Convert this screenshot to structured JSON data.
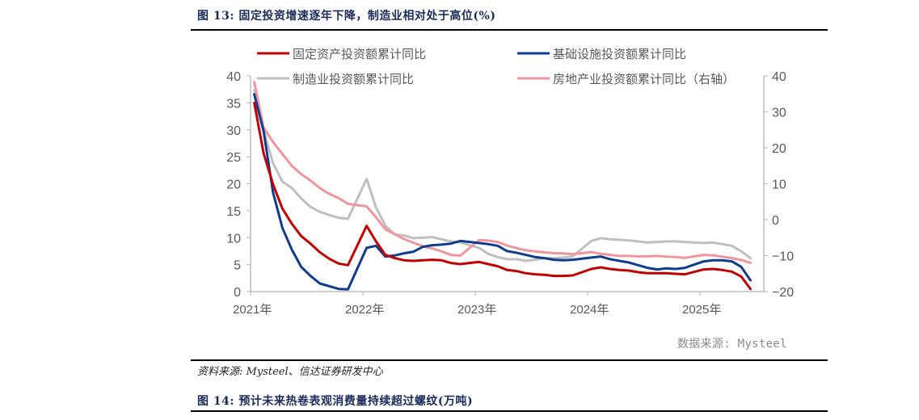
{
  "figure": {
    "title": "图 13: 固定投资增速逐年下降，制造业相对处于高位(%)",
    "inner_source": "数据来源: Mysteel",
    "source_note": "资料来源: Mysteel、信达证券研发中心",
    "next_title": "图 14: 预计未来热卷表观消费量持续超过螺纹(万吨)"
  },
  "chart_data": {
    "type": "line",
    "title": "固定投资增速逐年下降，制造业相对处于高位(%)",
    "xlabel": "",
    "ylabel": "",
    "x_tick_labels": [
      "2021年",
      "2022年",
      "2023年",
      "2024年",
      "2025年"
    ],
    "y_left": {
      "ticks": [
        0,
        5,
        10,
        15,
        20,
        25,
        30,
        35,
        40
      ],
      "range": [
        0,
        40
      ]
    },
    "y_right": {
      "ticks": [
        -20,
        -10,
        0,
        10,
        20,
        30,
        40
      ],
      "range": [
        -20,
        40
      ]
    },
    "grid": false,
    "legend_position": "top",
    "x": [
      "2021-02",
      "2021-03",
      "2021-04",
      "2021-05",
      "2021-06",
      "2021-07",
      "2021-08",
      "2021-09",
      "2021-10",
      "2021-11",
      "2021-12",
      "2022-02",
      "2022-03",
      "2022-04",
      "2022-05",
      "2022-06",
      "2022-07",
      "2022-08",
      "2022-09",
      "2022-10",
      "2022-11",
      "2022-12",
      "2023-02",
      "2023-03",
      "2023-04",
      "2023-05",
      "2023-06",
      "2023-07",
      "2023-08",
      "2023-09",
      "2023-10",
      "2023-11",
      "2023-12",
      "2024-02",
      "2024-03",
      "2024-04",
      "2024-05",
      "2024-06",
      "2024-07",
      "2024-08",
      "2024-09",
      "2024-10",
      "2024-11",
      "2024-12",
      "2025-02",
      "2025-03",
      "2025-04",
      "2025-05",
      "2025-06",
      "2025-07"
    ],
    "series": [
      {
        "name": "固定资产投资额累计同比",
        "axis": "left",
        "color": "#c00000",
        "values": [
          35.0,
          25.6,
          19.9,
          15.4,
          12.6,
          10.3,
          8.9,
          7.3,
          6.1,
          5.2,
          4.9,
          12.2,
          9.3,
          6.8,
          6.2,
          5.8,
          5.7,
          5.8,
          5.9,
          5.8,
          5.3,
          5.1,
          5.5,
          5.1,
          4.7,
          4.0,
          3.8,
          3.4,
          3.2,
          3.1,
          2.9,
          2.9,
          3.0,
          4.2,
          4.5,
          4.2,
          4.0,
          3.9,
          3.6,
          3.4,
          3.4,
          3.4,
          3.3,
          3.2,
          4.1,
          4.2,
          4.0,
          3.7,
          2.8,
          0.5
        ]
      },
      {
        "name": "基础设施投资额累计同比",
        "axis": "left",
        "color": "#0f3c8c",
        "values": [
          36.6,
          29.7,
          18.4,
          11.8,
          7.8,
          4.6,
          2.9,
          1.5,
          1.0,
          0.5,
          0.4,
          8.1,
          8.5,
          6.5,
          6.7,
          7.1,
          7.4,
          8.3,
          8.6,
          8.7,
          8.9,
          9.4,
          9.0,
          8.8,
          8.5,
          7.5,
          7.2,
          6.8,
          6.4,
          6.2,
          5.9,
          5.8,
          5.9,
          6.3,
          6.5,
          6.0,
          5.7,
          5.4,
          4.9,
          4.4,
          4.1,
          4.3,
          4.2,
          4.4,
          5.6,
          5.8,
          5.8,
          5.6,
          4.6,
          2.1
        ]
      },
      {
        "name": "制造业投资额累计同比",
        "axis": "left",
        "color": "#bfbfbf",
        "values": [
          37.3,
          29.8,
          23.8,
          20.4,
          19.2,
          17.3,
          15.7,
          14.8,
          14.2,
          13.7,
          13.5,
          20.9,
          15.6,
          12.2,
          10.6,
          10.4,
          9.9,
          10.0,
          10.1,
          9.7,
          9.3,
          9.1,
          8.1,
          7.0,
          6.4,
          6.0,
          6.0,
          5.7,
          5.9,
          6.2,
          6.2,
          6.3,
          6.5,
          9.4,
          9.9,
          9.7,
          9.6,
          9.5,
          9.3,
          9.1,
          9.2,
          9.3,
          9.3,
          9.2,
          9.0,
          9.1,
          8.8,
          8.5,
          7.5,
          6.2
        ]
      },
      {
        "name": "房地产业投资额累计同比（右轴）",
        "axis": "right",
        "color": "#f0959d",
        "values": [
          38.3,
          25.6,
          21.6,
          18.3,
          15.0,
          12.7,
          10.9,
          8.8,
          7.2,
          6.0,
          4.4,
          3.7,
          0.7,
          -2.7,
          -4.0,
          -5.4,
          -6.4,
          -7.4,
          -8.0,
          -8.8,
          -9.8,
          -10.0,
          -5.7,
          -5.8,
          -6.2,
          -7.2,
          -7.9,
          -8.5,
          -8.8,
          -9.1,
          -9.3,
          -9.4,
          -9.6,
          -9.0,
          -9.5,
          -9.8,
          -10.1,
          -10.1,
          -10.2,
          -10.2,
          -10.1,
          -10.3,
          -10.4,
          -10.6,
          -9.8,
          -9.9,
          -10.3,
          -10.7,
          -11.2,
          -12.0
        ]
      }
    ]
  }
}
